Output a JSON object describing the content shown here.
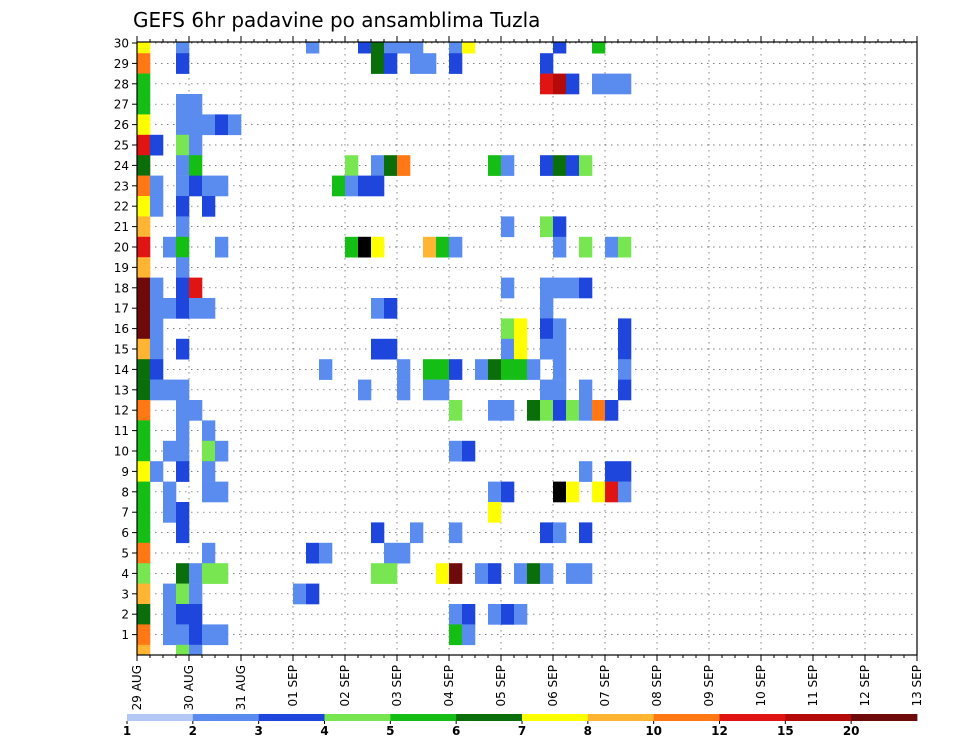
{
  "chart_data": {
    "type": "heatmap",
    "title": "GEFS 6hr padavine po ansamblima Tuzla",
    "y_members": [
      1,
      2,
      3,
      4,
      5,
      6,
      7,
      8,
      9,
      10,
      11,
      12,
      13,
      14,
      15,
      16,
      17,
      18,
      19,
      20,
      21,
      22,
      23,
      24,
      25,
      26,
      27,
      28,
      29,
      30
    ],
    "x_start": "29 AUG 00Z",
    "x_step_hours": 6,
    "x_steps": 60,
    "x_tick_labels": [
      "29 AUG",
      "30 AUG",
      "31 AUG",
      "01 SEP",
      "02 SEP",
      "03 SEP",
      "04 SEP",
      "05 SEP",
      "06 SEP",
      "07 SEP",
      "08 SEP",
      "09 SEP",
      "10 SEP",
      "11 SEP",
      "12 SEP",
      "13 SEP"
    ],
    "grid": true,
    "legend": {
      "placement": "bottom",
      "labels": [
        "1",
        "2",
        "3",
        "4",
        "5",
        "6",
        "7",
        "8",
        "10",
        "12",
        "15",
        "20"
      ],
      "colors": [
        "#b4c8f5",
        "#5a8cf0",
        "#1e46dc",
        "#78e650",
        "#14be14",
        "#0a6e0a",
        "#ffff00",
        "#ffb432",
        "#ff7814",
        "#e11414",
        "#b40a0a",
        "#6e0a0a"
      ]
    },
    "cells": [
      [
        30,
        0,
        6
      ],
      [
        30,
        3,
        1
      ],
      [
        30,
        13,
        1
      ],
      [
        30,
        17,
        2
      ],
      [
        30,
        18,
        5
      ],
      [
        30,
        19,
        1
      ],
      [
        30,
        20,
        1
      ],
      [
        30,
        21,
        1
      ],
      [
        30,
        24,
        1
      ],
      [
        30,
        25,
        6
      ],
      [
        30,
        32,
        2
      ],
      [
        30,
        35,
        4
      ],
      [
        29,
        0,
        8
      ],
      [
        29,
        3,
        2
      ],
      [
        29,
        18,
        5
      ],
      [
        29,
        19,
        2
      ],
      [
        29,
        21,
        1
      ],
      [
        29,
        22,
        1
      ],
      [
        29,
        24,
        2
      ],
      [
        29,
        31,
        2
      ],
      [
        28,
        0,
        4
      ],
      [
        28,
        31,
        9
      ],
      [
        28,
        32,
        10
      ],
      [
        28,
        33,
        2
      ],
      [
        28,
        35,
        1
      ],
      [
        28,
        36,
        1
      ],
      [
        28,
        37,
        1
      ],
      [
        27,
        0,
        4
      ],
      [
        27,
        3,
        1
      ],
      [
        27,
        4,
        1
      ],
      [
        26,
        0,
        6
      ],
      [
        26,
        3,
        1
      ],
      [
        26,
        4,
        1
      ],
      [
        26,
        5,
        1
      ],
      [
        26,
        6,
        2
      ],
      [
        26,
        7,
        1
      ],
      [
        25,
        0,
        9
      ],
      [
        25,
        1,
        2
      ],
      [
        25,
        3,
        3
      ],
      [
        25,
        4,
        1
      ],
      [
        24,
        0,
        5
      ],
      [
        24,
        3,
        1
      ],
      [
        24,
        4,
        4
      ],
      [
        24,
        16,
        3
      ],
      [
        24,
        18,
        1
      ],
      [
        24,
        19,
        5
      ],
      [
        24,
        20,
        8
      ],
      [
        24,
        27,
        4
      ],
      [
        24,
        28,
        1
      ],
      [
        24,
        31,
        2
      ],
      [
        24,
        32,
        5
      ],
      [
        24,
        33,
        2
      ],
      [
        24,
        34,
        3
      ],
      [
        23,
        0,
        8
      ],
      [
        23,
        1,
        1
      ],
      [
        23,
        3,
        1
      ],
      [
        23,
        4,
        2
      ],
      [
        23,
        5,
        1
      ],
      [
        23,
        6,
        1
      ],
      [
        23,
        15,
        4
      ],
      [
        23,
        16,
        1
      ],
      [
        23,
        17,
        2
      ],
      [
        23,
        18,
        2
      ],
      [
        22,
        0,
        6
      ],
      [
        22,
        1,
        1
      ],
      [
        22,
        3,
        2
      ],
      [
        22,
        5,
        2
      ],
      [
        21,
        0,
        7
      ],
      [
        21,
        3,
        1
      ],
      [
        21,
        28,
        1
      ],
      [
        21,
        31,
        3
      ],
      [
        21,
        32,
        2
      ],
      [
        20,
        0,
        9
      ],
      [
        20,
        2,
        1
      ],
      [
        20,
        3,
        4
      ],
      [
        20,
        6,
        1
      ],
      [
        20,
        16,
        4
      ],
      [
        20,
        17,
        12
      ],
      [
        20,
        18,
        6
      ],
      [
        20,
        22,
        7
      ],
      [
        20,
        23,
        4
      ],
      [
        20,
        24,
        1
      ],
      [
        20,
        32,
        1
      ],
      [
        20,
        34,
        3
      ],
      [
        20,
        36,
        1
      ],
      [
        20,
        37,
        3
      ],
      [
        19,
        0,
        7
      ],
      [
        19,
        3,
        1
      ],
      [
        18,
        0,
        11
      ],
      [
        18,
        1,
        1
      ],
      [
        18,
        3,
        2
      ],
      [
        18,
        4,
        9
      ],
      [
        18,
        28,
        1
      ],
      [
        18,
        31,
        1
      ],
      [
        18,
        32,
        1
      ],
      [
        18,
        33,
        1
      ],
      [
        18,
        34,
        2
      ],
      [
        17,
        0,
        11
      ],
      [
        17,
        1,
        1
      ],
      [
        17,
        2,
        1
      ],
      [
        17,
        3,
        2
      ],
      [
        17,
        4,
        1
      ],
      [
        17,
        5,
        1
      ],
      [
        17,
        18,
        1
      ],
      [
        17,
        19,
        2
      ],
      [
        17,
        31,
        1
      ],
      [
        16,
        0,
        11
      ],
      [
        16,
        1,
        1
      ],
      [
        16,
        28,
        3
      ],
      [
        16,
        29,
        6
      ],
      [
        16,
        31,
        2
      ],
      [
        16,
        32,
        1
      ],
      [
        16,
        37,
        2
      ],
      [
        15,
        0,
        7
      ],
      [
        15,
        1,
        1
      ],
      [
        15,
        3,
        2
      ],
      [
        15,
        18,
        2
      ],
      [
        15,
        19,
        2
      ],
      [
        15,
        28,
        1
      ],
      [
        15,
        29,
        6
      ],
      [
        15,
        31,
        1
      ],
      [
        15,
        32,
        1
      ],
      [
        15,
        37,
        2
      ],
      [
        14,
        0,
        5
      ],
      [
        14,
        1,
        2
      ],
      [
        14,
        14,
        1
      ],
      [
        14,
        20,
        1
      ],
      [
        14,
        22,
        4
      ],
      [
        14,
        23,
        4
      ],
      [
        14,
        24,
        2
      ],
      [
        14,
        26,
        1
      ],
      [
        14,
        27,
        5
      ],
      [
        14,
        28,
        4
      ],
      [
        14,
        29,
        4
      ],
      [
        14,
        30,
        1
      ],
      [
        14,
        32,
        1
      ],
      [
        14,
        37,
        1
      ],
      [
        13,
        0,
        5
      ],
      [
        13,
        1,
        1
      ],
      [
        13,
        2,
        1
      ],
      [
        13,
        3,
        1
      ],
      [
        13,
        17,
        1
      ],
      [
        13,
        20,
        1
      ],
      [
        13,
        22,
        1
      ],
      [
        13,
        23,
        1
      ],
      [
        13,
        31,
        1
      ],
      [
        13,
        32,
        1
      ],
      [
        13,
        34,
        1
      ],
      [
        13,
        37,
        2
      ],
      [
        12,
        0,
        8
      ],
      [
        12,
        3,
        1
      ],
      [
        12,
        4,
        1
      ],
      [
        12,
        24,
        3
      ],
      [
        12,
        27,
        1
      ],
      [
        12,
        28,
        1
      ],
      [
        12,
        30,
        5
      ],
      [
        12,
        31,
        3
      ],
      [
        12,
        32,
        2
      ],
      [
        12,
        33,
        3
      ],
      [
        12,
        34,
        1
      ],
      [
        12,
        35,
        8
      ],
      [
        12,
        36,
        2
      ],
      [
        11,
        0,
        4
      ],
      [
        11,
        3,
        1
      ],
      [
        11,
        5,
        1
      ],
      [
        10,
        0,
        4
      ],
      [
        10,
        2,
        1
      ],
      [
        10,
        3,
        1
      ],
      [
        10,
        5,
        3
      ],
      [
        10,
        6,
        1
      ],
      [
        10,
        24,
        1
      ],
      [
        10,
        25,
        2
      ],
      [
        9,
        0,
        6
      ],
      [
        9,
        1,
        1
      ],
      [
        9,
        3,
        2
      ],
      [
        9,
        5,
        1
      ],
      [
        9,
        34,
        1
      ],
      [
        9,
        36,
        2
      ],
      [
        9,
        37,
        2
      ],
      [
        8,
        0,
        4
      ],
      [
        8,
        2,
        1
      ],
      [
        8,
        5,
        1
      ],
      [
        8,
        6,
        1
      ],
      [
        8,
        27,
        1
      ],
      [
        8,
        28,
        2
      ],
      [
        8,
        32,
        12
      ],
      [
        8,
        33,
        6
      ],
      [
        8,
        35,
        6
      ],
      [
        8,
        36,
        9
      ],
      [
        8,
        37,
        1
      ],
      [
        7,
        0,
        4
      ],
      [
        7,
        2,
        1
      ],
      [
        7,
        3,
        2
      ],
      [
        7,
        27,
        6
      ],
      [
        6,
        0,
        4
      ],
      [
        6,
        3,
        2
      ],
      [
        6,
        18,
        2
      ],
      [
        6,
        21,
        1
      ],
      [
        6,
        24,
        1
      ],
      [
        6,
        31,
        2
      ],
      [
        6,
        32,
        1
      ],
      [
        6,
        34,
        2
      ],
      [
        5,
        0,
        8
      ],
      [
        5,
        5,
        1
      ],
      [
        5,
        13,
        2
      ],
      [
        5,
        14,
        1
      ],
      [
        5,
        19,
        1
      ],
      [
        5,
        20,
        1
      ],
      [
        4,
        0,
        3
      ],
      [
        4,
        3,
        5
      ],
      [
        4,
        4,
        1
      ],
      [
        4,
        5,
        3
      ],
      [
        4,
        6,
        3
      ],
      [
        4,
        18,
        3
      ],
      [
        4,
        19,
        3
      ],
      [
        4,
        23,
        6
      ],
      [
        4,
        24,
        11
      ],
      [
        4,
        26,
        1
      ],
      [
        4,
        27,
        2
      ],
      [
        4,
        29,
        1
      ],
      [
        4,
        30,
        5
      ],
      [
        4,
        31,
        1
      ],
      [
        4,
        33,
        1
      ],
      [
        4,
        34,
        1
      ],
      [
        3,
        0,
        7
      ],
      [
        3,
        2,
        1
      ],
      [
        3,
        3,
        3
      ],
      [
        3,
        4,
        1
      ],
      [
        3,
        12,
        1
      ],
      [
        3,
        13,
        2
      ],
      [
        2,
        0,
        5
      ],
      [
        2,
        2,
        1
      ],
      [
        2,
        3,
        2
      ],
      [
        2,
        4,
        2
      ],
      [
        2,
        24,
        1
      ],
      [
        2,
        25,
        2
      ],
      [
        2,
        27,
        1
      ],
      [
        2,
        28,
        2
      ],
      [
        2,
        29,
        1
      ],
      [
        1,
        0,
        8
      ],
      [
        1,
        2,
        1
      ],
      [
        1,
        3,
        1
      ],
      [
        1,
        4,
        2
      ],
      [
        1,
        5,
        1
      ],
      [
        1,
        6,
        1
      ],
      [
        1,
        24,
        4
      ],
      [
        1,
        25,
        1
      ],
      [
        0,
        0,
        7
      ],
      [
        0,
        3,
        3
      ],
      [
        0,
        4,
        1
      ]
    ]
  }
}
